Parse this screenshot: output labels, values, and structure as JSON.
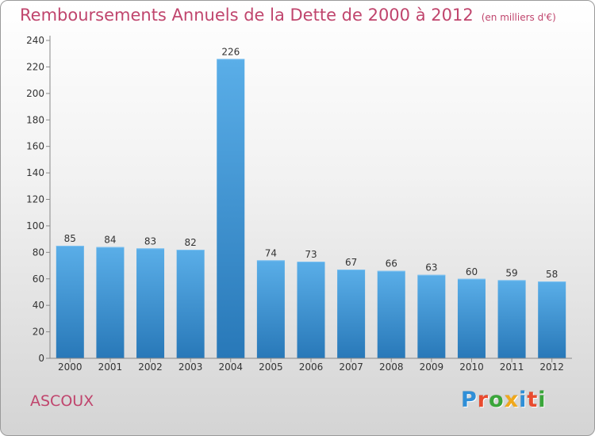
{
  "header": {
    "title": "Remboursements Annuels de la Dette de 2000 à 2012",
    "subtitle": "(en milliers d'€)"
  },
  "footer": {
    "commune": "ASCOUX",
    "logo_letters": [
      "P",
      "r",
      "o",
      "x",
      "i",
      "t",
      "i"
    ],
    "logo_colors": [
      "#2f8fd8",
      "#e94b2f",
      "#3aa63a",
      "#f0a81c",
      "#2f8fd8",
      "#e94b2f",
      "#3aa63a"
    ]
  },
  "colors": {
    "title": "#c0456d",
    "bar_light": "#5aaee8",
    "bar_dark": "#2878b8"
  },
  "chart_data": {
    "type": "bar",
    "title": "Remboursements Annuels de la Dette de 2000 à 2012",
    "subtitle": "(en milliers d'€)",
    "categories": [
      "2000",
      "2001",
      "2002",
      "2003",
      "2004",
      "2005",
      "2006",
      "2007",
      "2008",
      "2009",
      "2010",
      "2011",
      "2012"
    ],
    "values": [
      85,
      84,
      83,
      82,
      226,
      74,
      73,
      67,
      66,
      63,
      60,
      59,
      58
    ],
    "ylim": [
      0,
      240
    ],
    "yticks": [
      0,
      20,
      40,
      60,
      80,
      100,
      120,
      140,
      160,
      180,
      200,
      220,
      240
    ],
    "grid": false,
    "data_labels": true
  }
}
